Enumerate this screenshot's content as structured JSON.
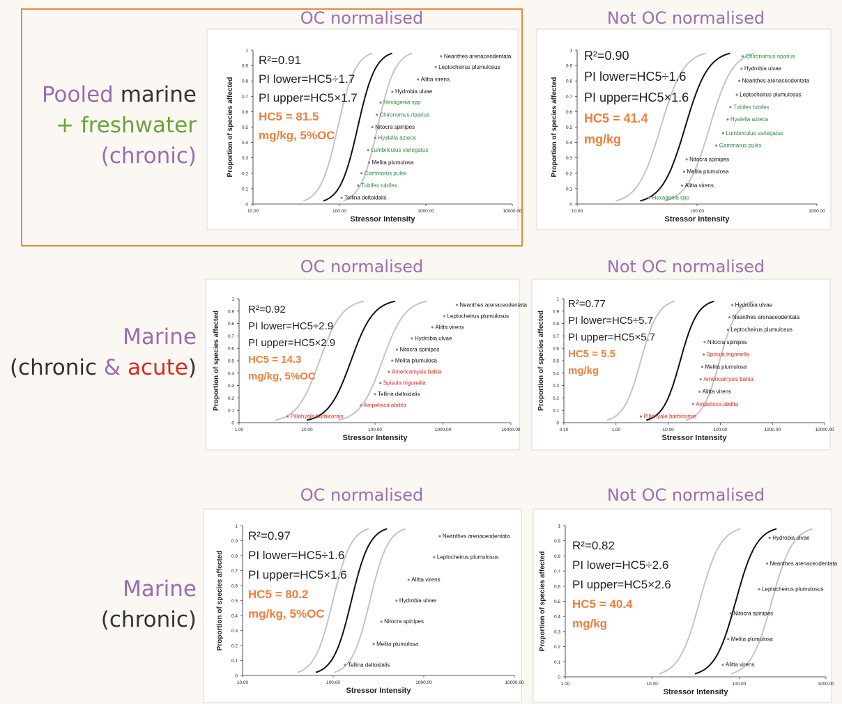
{
  "colors": {
    "purple": "#9a6cb0",
    "green": "#6aa33b",
    "red": "#e0281c",
    "orange": "#f07e3a",
    "dark": "#333333",
    "highlight_border": "#e8883c",
    "fit_line": "#111111",
    "pi_line": "#c4c4c4",
    "marine_species": "#111111",
    "freshwater_species": "#2b8a3e",
    "acute_species": "#e0281c"
  },
  "row_labels": [
    {
      "parts": [
        {
          "text": "Pooled",
          "color": "purple"
        },
        {
          "text": " marine",
          "color": "dark"
        }
      ],
      "line2": [
        {
          "text": "+ ",
          "color": "green"
        },
        {
          "text": "freshwater",
          "color": "green"
        }
      ],
      "line3": [
        {
          "text": "(chronic)",
          "color": "purple"
        }
      ]
    },
    {
      "line1": [
        {
          "text": "Marine",
          "color": "purple"
        }
      ],
      "line2": [
        {
          "text": "(chronic ",
          "color": "dark"
        },
        {
          "text": "&",
          "color": "purple"
        },
        {
          "text": " acute",
          "color": "red"
        },
        {
          "text": ")",
          "color": "dark"
        }
      ]
    },
    {
      "line1": [
        {
          "text": "Marine",
          "color": "purple"
        }
      ],
      "line2": [
        {
          "text": "(chronic)",
          "color": "dark"
        }
      ]
    }
  ],
  "row_label_text": {
    "r1a": "Pooled",
    "r1b": " marine",
    "r1c": "+ freshwater",
    "r1d": "(chronic)",
    "r2a": "Marine",
    "r2b": "(chronic ",
    "r2c": "&",
    "r2d": " acute",
    "r2e": ")",
    "r3a": "Marine",
    "r3b": "(chronic)"
  },
  "column_headers": {
    "oc": "OC normalised",
    "not_oc": "Not OC normalised"
  },
  "chart_data": [
    {
      "id": "pooled_oc",
      "type": "scatter",
      "ylabel": "Proportion of species affected",
      "xlabel": "Stressor Intensity",
      "xscale": "log",
      "xlim": [
        10,
        10000
      ],
      "xticks": [
        "10.00",
        "100.00",
        "1000.00",
        "10000.00"
      ],
      "ylim": [
        0,
        1
      ],
      "yticks": [
        "0",
        "0.1",
        "0.2",
        "0.3",
        "0.4",
        "0.5",
        "0.6",
        "0.7",
        "0.8",
        "0.9",
        "1"
      ],
      "stats": {
        "r2": "R²=0.91",
        "pi_lower": "PI lower=HC5÷1.7",
        "pi_upper": "PI upper=HC5×1.7",
        "hc5": "HC5 = 81.5",
        "units": "mg/kg, 5%OC"
      },
      "fit": {
        "hc5": 81.5,
        "slope": 4.25,
        "factor": 1.7
      },
      "points": [
        {
          "label": "Tellina deltoidalis",
          "x": 106,
          "y": 0.04,
          "group": "marine"
        },
        {
          "label": "Tubifex tubifex",
          "x": 165,
          "y": 0.12,
          "group": "freshwater"
        },
        {
          "label": "Gammarus pulex",
          "x": 180,
          "y": 0.2,
          "group": "freshwater"
        },
        {
          "label": "Melita plumulosa",
          "x": 220,
          "y": 0.27,
          "group": "marine"
        },
        {
          "label": "Lumbriculus variegatus",
          "x": 215,
          "y": 0.35,
          "group": "freshwater"
        },
        {
          "label": "Hyalella azteca",
          "x": 260,
          "y": 0.43,
          "group": "freshwater"
        },
        {
          "label": "Nitocra spinipes",
          "x": 240,
          "y": 0.5,
          "group": "marine"
        },
        {
          "label": "Chironomus riparius",
          "x": 270,
          "y": 0.58,
          "group": "freshwater"
        },
        {
          "label": "Hexagenia spp",
          "x": 300,
          "y": 0.66,
          "group": "freshwater"
        },
        {
          "label": "Hydrobia ulvae",
          "x": 410,
          "y": 0.73,
          "group": "marine"
        },
        {
          "label": "Alitta virens",
          "x": 810,
          "y": 0.81,
          "group": "marine"
        },
        {
          "label": "Leptocheirus plumulosus",
          "x": 1300,
          "y": 0.89,
          "group": "marine"
        },
        {
          "label": "Neanthes arenaceodentata",
          "x": 1500,
          "y": 0.96,
          "group": "marine"
        }
      ]
    },
    {
      "id": "pooled_not_oc",
      "type": "scatter",
      "ylabel": "Proportion of species affected",
      "xlabel": "Stressor Intensity",
      "xscale": "log",
      "xlim": [
        10,
        1000
      ],
      "xticks": [
        "10.00",
        "100.00",
        "1000.00"
      ],
      "ylim": [
        0,
        1
      ],
      "yticks": [
        "0",
        "0.1",
        "0.2",
        "0.3",
        "0.4",
        "0.5",
        "0.6",
        "0.7",
        "0.8",
        "0.9",
        "1"
      ],
      "stats": {
        "r2": "R²=0.90",
        "pi_lower": "PI lower=HC5÷1.6",
        "pi_upper": "PI upper=HC5×1.6",
        "hc5": "HC5 = 41.4",
        "units": "mg/kg"
      },
      "fit": {
        "hc5": 41.4,
        "slope": 4.5,
        "factor": 1.6
      },
      "points": [
        {
          "label": "Hexagenia spp",
          "x": 40,
          "y": 0.04,
          "group": "freshwater"
        },
        {
          "label": "Alitta virens",
          "x": 75,
          "y": 0.12,
          "group": "marine"
        },
        {
          "label": "Melita plumulosa",
          "x": 78,
          "y": 0.21,
          "group": "marine"
        },
        {
          "label": "Nitocra spinipes",
          "x": 82,
          "y": 0.29,
          "group": "marine"
        },
        {
          "label": "Gammarus pulex",
          "x": 145,
          "y": 0.38,
          "group": "freshwater"
        },
        {
          "label": "Lumbriculus variegatus",
          "x": 165,
          "y": 0.46,
          "group": "freshwater"
        },
        {
          "label": "Hyalella azteca",
          "x": 180,
          "y": 0.55,
          "group": "freshwater"
        },
        {
          "label": "Tubifex tubifex",
          "x": 190,
          "y": 0.63,
          "group": "freshwater"
        },
        {
          "label": "Leptocheirus plumulosus",
          "x": 215,
          "y": 0.71,
          "group": "marine"
        },
        {
          "label": "Neanthes arenaceodentata",
          "x": 225,
          "y": 0.8,
          "group": "marine"
        },
        {
          "label": "Hydrobia ulvae",
          "x": 235,
          "y": 0.88,
          "group": "marine"
        },
        {
          "label": "Chironomus riparius",
          "x": 240,
          "y": 0.96,
          "group": "freshwater"
        }
      ]
    },
    {
      "id": "marine_oc",
      "type": "scatter",
      "ylabel": "Proportion of species affected",
      "xlabel": "Stressor Intensity",
      "xscale": "log",
      "xlim": [
        1,
        10000
      ],
      "xticks": [
        "1.00",
        "10.00",
        "100.00",
        "1000.00",
        "10000.00"
      ],
      "ylim": [
        0,
        1
      ],
      "yticks": [
        "0",
        "0.1",
        "0.2",
        "0.3",
        "0.4",
        "0.5",
        "0.6",
        "0.7",
        "0.8",
        "0.9",
        "1"
      ],
      "stats": {
        "r2": "R²=0.92",
        "pi_lower": "PI lower=HC5÷2.9",
        "pi_upper": "PI upper=HC5×2.9",
        "hc5": "HC5 = 14.3",
        "units": "mg/kg, 5%OC"
      },
      "fit": {
        "hc5": 14.3,
        "slope": 2.6,
        "factor": 2.9
      },
      "points": [
        {
          "label": "Pillohyale barbicornis",
          "x": 5.2,
          "y": 0.05,
          "group": "acute"
        },
        {
          "label": "Ampelisca abdita",
          "x": 62,
          "y": 0.14,
          "group": "acute"
        },
        {
          "label": "Tellina deltoidalis",
          "x": 100,
          "y": 0.23,
          "group": "marine"
        },
        {
          "label": "Spisula trigonella",
          "x": 120,
          "y": 0.32,
          "group": "acute"
        },
        {
          "label": "Americamysis bahia",
          "x": 160,
          "y": 0.41,
          "group": "acute"
        },
        {
          "label": "Melita plumulosa",
          "x": 180,
          "y": 0.5,
          "group": "marine"
        },
        {
          "label": "Nitocra spinipes",
          "x": 210,
          "y": 0.59,
          "group": "marine"
        },
        {
          "label": "Hydrobia ulvae",
          "x": 350,
          "y": 0.68,
          "group": "marine"
        },
        {
          "label": "Alitta virens",
          "x": 700,
          "y": 0.77,
          "group": "marine"
        },
        {
          "label": "Leptocheirus plumulosus",
          "x": 1050,
          "y": 0.86,
          "group": "marine"
        },
        {
          "label": "Neanthes arenaceodentata",
          "x": 1600,
          "y": 0.95,
          "group": "marine"
        }
      ]
    },
    {
      "id": "marine_not_oc",
      "type": "scatter",
      "ylabel": "Proportion of species affected",
      "xlabel": "Stressor Intensity",
      "xscale": "log",
      "xlim": [
        0.1,
        10000
      ],
      "xticks": [
        "0.10",
        "1.00",
        "10.00",
        "100.00",
        "1000.00",
        "10000.00"
      ],
      "ylim": [
        0,
        1
      ],
      "yticks": [
        "0",
        "0.1",
        "0.2",
        "0.3",
        "0.4",
        "0.5",
        "0.6",
        "0.7",
        "0.8",
        "0.9",
        "1"
      ],
      "stats": {
        "r2": "R²=0.77",
        "pi_lower": "PI lower=HC5÷5.7",
        "pi_upper": "PI upper=HC5×5.7",
        "hc5": "HC5 = 5.5",
        "units": "mg/kg"
      },
      "fit": {
        "hc5": 5.5,
        "slope": 2.6,
        "factor": 5.7
      },
      "points": [
        {
          "label": "Pillohyale barbicornis",
          "x": 3,
          "y": 0.05,
          "group": "acute"
        },
        {
          "label": "Ampelisca abdita",
          "x": 30,
          "y": 0.15,
          "group": "acute"
        },
        {
          "label": "Alitta virens",
          "x": 40,
          "y": 0.25,
          "group": "marine"
        },
        {
          "label": "Americamysis bahia",
          "x": 42,
          "y": 0.35,
          "group": "acute"
        },
        {
          "label": "Melita plumulosa",
          "x": 45,
          "y": 0.45,
          "group": "marine"
        },
        {
          "label": "Spisula trigonella",
          "x": 48,
          "y": 0.55,
          "group": "acute"
        },
        {
          "label": "Nitocra spinipes",
          "x": 50,
          "y": 0.65,
          "group": "marine"
        },
        {
          "label": "Leptocheirus plumulosus",
          "x": 140,
          "y": 0.75,
          "group": "marine"
        },
        {
          "label": "Neanthes arenaceodentata",
          "x": 150,
          "y": 0.85,
          "group": "marine"
        },
        {
          "label": "Hydrobia ulvae",
          "x": 170,
          "y": 0.95,
          "group": "marine"
        }
      ]
    },
    {
      "id": "marine_chronic_oc",
      "type": "scatter",
      "ylabel": "Proportion of species affected",
      "xlabel": "Stressor Intensity",
      "xscale": "log",
      "xlim": [
        10,
        10000
      ],
      "xticks": [
        "10.00",
        "100.00",
        "1000.00",
        "10000.00"
      ],
      "ylim": [
        0,
        1
      ],
      "yticks": [
        "0",
        "0.1",
        "0.2",
        "0.3",
        "0.4",
        "0.5",
        "0.6",
        "0.7",
        "0.8",
        "0.9",
        "1"
      ],
      "stats": {
        "r2": "R²=0.97",
        "pi_lower": "PI lower=HC5÷1.6",
        "pi_upper": "PI upper=HC5×1.6",
        "hc5": "HC5 = 80.2",
        "units": "mg/kg, 5%OC"
      },
      "fit": {
        "hc5": 80.2,
        "slope": 4.3,
        "factor": 1.6
      },
      "points": [
        {
          "label": "Tellina deltoidalis",
          "x": 135,
          "y": 0.07,
          "group": "marine"
        },
        {
          "label": "Melita plumulosa",
          "x": 280,
          "y": 0.21,
          "group": "marine"
        },
        {
          "label": "Nitocra spinipes",
          "x": 340,
          "y": 0.36,
          "group": "marine"
        },
        {
          "label": "Hydrobia ulvae",
          "x": 500,
          "y": 0.5,
          "group": "marine"
        },
        {
          "label": "Alitta virens",
          "x": 680,
          "y": 0.64,
          "group": "marine"
        },
        {
          "label": "Leptocheirus plumulosus",
          "x": 1300,
          "y": 0.79,
          "group": "marine"
        },
        {
          "label": "Neanthes arenaceodentata",
          "x": 1500,
          "y": 0.93,
          "group": "marine"
        }
      ]
    },
    {
      "id": "marine_chronic_not_oc",
      "type": "scatter",
      "ylabel": "Proportion of species affected",
      "xlabel": "Stressor Intensity",
      "xscale": "log",
      "xlim": [
        1,
        1000
      ],
      "xticks": [
        "1.00",
        "10.00",
        "100.00",
        "1000.00"
      ],
      "ylim": [
        0,
        1
      ],
      "yticks": [
        "0",
        "0.1",
        "0.2",
        "0.3",
        "0.4",
        "0.5",
        "0.6",
        "0.7",
        "0.8",
        "0.9",
        "1"
      ],
      "stats": {
        "r2": "R²=0.82",
        "pi_lower": "PI lower=HC5÷2.6",
        "pi_upper": "PI upper=HC5×2.6",
        "hc5": "HC5 = 40.4",
        "units": "mg/kg"
      },
      "fit": {
        "hc5": 40.4,
        "slope": 3.6,
        "factor": 2.6
      },
      "points": [
        {
          "label": "Alitta virens",
          "x": 65,
          "y": 0.08,
          "group": "marine"
        },
        {
          "label": "Melita plumulosa",
          "x": 75,
          "y": 0.25,
          "group": "marine"
        },
        {
          "label": "Nitocra spinipes",
          "x": 80,
          "y": 0.42,
          "group": "marine"
        },
        {
          "label": "Leptocheirus plumulosus",
          "x": 170,
          "y": 0.58,
          "group": "marine"
        },
        {
          "label": "Neanthes arenaceodentata",
          "x": 210,
          "y": 0.75,
          "group": "marine"
        },
        {
          "label": "Hydrobia ulvae",
          "x": 225,
          "y": 0.92,
          "group": "marine"
        }
      ]
    }
  ]
}
